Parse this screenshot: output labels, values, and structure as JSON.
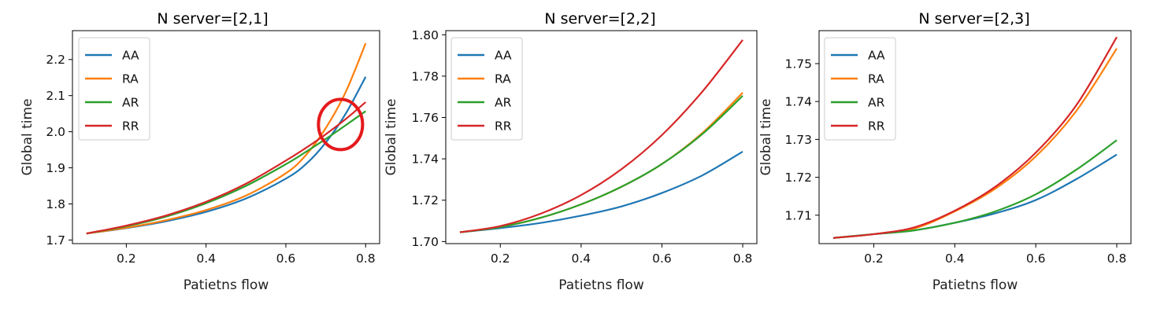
{
  "chart_data": [
    {
      "type": "line",
      "title": "N server=[2,1]",
      "xlabel": "Patietns flow",
      "ylabel": "Global time",
      "xlim": [
        0.065,
        0.835
      ],
      "ylim": [
        1.69,
        2.28
      ],
      "xticks": [
        "0.2",
        "0.4",
        "0.6",
        "0.8"
      ],
      "yticks": [
        "1.7",
        "1.8",
        "1.9",
        "2.0",
        "2.1",
        "2.2"
      ],
      "x": [
        0.1,
        0.2,
        0.3,
        0.4,
        0.5,
        0.6,
        0.65,
        0.7,
        0.75,
        0.8
      ],
      "series": [
        {
          "name": "AA",
          "color": "#1f77b4",
          "values": [
            1.718,
            1.733,
            1.752,
            1.778,
            1.815,
            1.87,
            1.91,
            1.97,
            2.05,
            2.152
          ]
        },
        {
          "name": "RA",
          "color": "#ff7f0e",
          "values": [
            1.718,
            1.734,
            1.755,
            1.783,
            1.823,
            1.885,
            1.935,
            2.01,
            2.11,
            2.245
          ]
        },
        {
          "name": "AR",
          "color": "#2ca02c",
          "values": [
            1.718,
            1.738,
            1.765,
            1.802,
            1.85,
            1.91,
            1.944,
            1.98,
            2.018,
            2.057
          ]
        },
        {
          "name": "RR",
          "color": "#d62728",
          "values": [
            1.718,
            1.74,
            1.768,
            1.806,
            1.856,
            1.92,
            1.955,
            1.993,
            2.035,
            2.082
          ]
        }
      ],
      "annotation": {
        "type": "circle",
        "color": "#e41a1c",
        "center_data": [
          0.737,
          2.02
        ]
      },
      "legend": "top-left",
      "grid": false
    },
    {
      "type": "line",
      "title": "N server=[2,2]",
      "xlabel": "Patietns flow",
      "ylabel": "Global time",
      "xlim": [
        0.065,
        0.835
      ],
      "ylim": [
        1.699,
        1.802
      ],
      "xticks": [
        "0.2",
        "0.4",
        "0.6",
        "0.8"
      ],
      "yticks": [
        "1.70",
        "1.72",
        "1.74",
        "1.76",
        "1.78",
        "1.80"
      ],
      "x": [
        0.1,
        0.2,
        0.3,
        0.4,
        0.5,
        0.6,
        0.7,
        0.8
      ],
      "series": [
        {
          "name": "AA",
          "color": "#1f77b4",
          "values": [
            1.7045,
            1.7065,
            1.709,
            1.7125,
            1.717,
            1.7235,
            1.732,
            1.7435
          ]
        },
        {
          "name": "RA",
          "color": "#ff7f0e",
          "values": [
            1.7045,
            1.707,
            1.7115,
            1.718,
            1.7265,
            1.7375,
            1.7525,
            1.772
          ]
        },
        {
          "name": "AR",
          "color": "#2ca02c",
          "values": [
            1.7045,
            1.707,
            1.7115,
            1.718,
            1.7265,
            1.7375,
            1.752,
            1.7705
          ]
        },
        {
          "name": "RR",
          "color": "#d62728",
          "values": [
            1.7045,
            1.7075,
            1.7135,
            1.7225,
            1.735,
            1.7515,
            1.7725,
            1.7975
          ]
        }
      ],
      "legend": "top-left",
      "grid": false
    },
    {
      "type": "line",
      "title": "N server=[2,3]",
      "xlabel": "Patietns flow",
      "ylabel": "Global time",
      "xlim": [
        0.065,
        0.835
      ],
      "ylim": [
        1.7025,
        1.7587
      ],
      "xticks": [
        "0.2",
        "0.4",
        "0.6",
        "0.8"
      ],
      "yticks": [
        "1.71",
        "1.72",
        "1.73",
        "1.74",
        "1.75"
      ],
      "x": [
        0.1,
        0.2,
        0.3,
        0.4,
        0.5,
        0.6,
        0.7,
        0.8
      ],
      "series": [
        {
          "name": "AA",
          "color": "#1f77b4",
          "values": [
            1.704,
            1.705,
            1.706,
            1.708,
            1.7105,
            1.714,
            1.7195,
            1.726
          ]
        },
        {
          "name": "RA",
          "color": "#ff7f0e",
          "values": [
            1.704,
            1.705,
            1.7065,
            1.711,
            1.717,
            1.7255,
            1.7375,
            1.754
          ]
        },
        {
          "name": "AR",
          "color": "#2ca02c",
          "values": [
            1.704,
            1.705,
            1.706,
            1.708,
            1.711,
            1.7155,
            1.722,
            1.7298
          ]
        },
        {
          "name": "RR",
          "color": "#d62728",
          "values": [
            1.704,
            1.705,
            1.7068,
            1.7112,
            1.7175,
            1.7265,
            1.739,
            1.757
          ]
        }
      ],
      "legend": "top-left",
      "grid": false
    }
  ]
}
